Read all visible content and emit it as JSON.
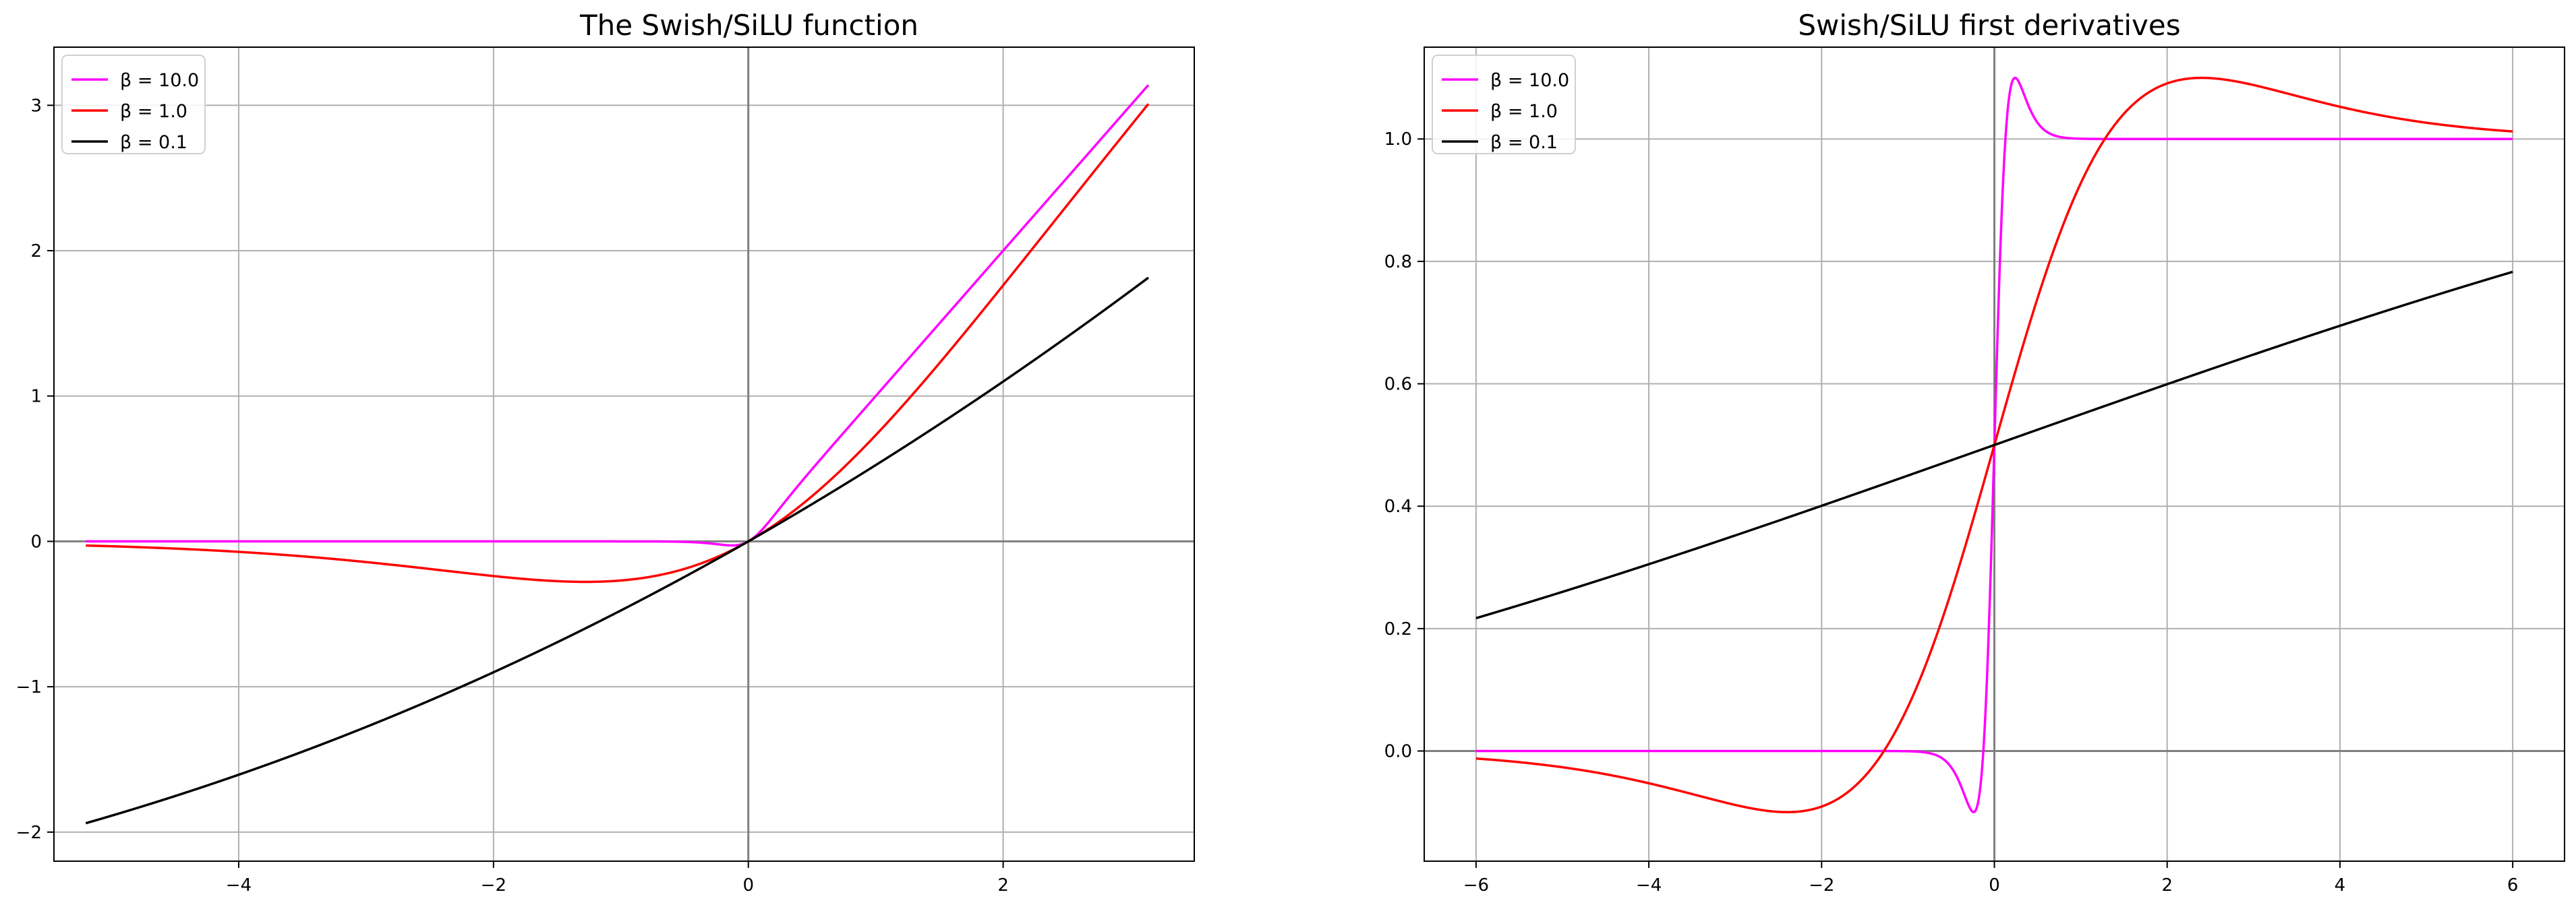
{
  "chart_data": [
    {
      "type": "line",
      "title": "The Swish/SiLU function",
      "xlim": [
        -5.45,
        3.5
      ],
      "ylim": [
        -2.2,
        3.4
      ],
      "xticks": [
        -4,
        -2,
        0,
        2
      ],
      "yticks": [
        -2,
        -1,
        0,
        1,
        2,
        3
      ],
      "xtick_labels": [
        "−4",
        "−2",
        "0",
        "2"
      ],
      "ytick_labels": [
        "−2",
        "−1",
        "0",
        "1",
        "2",
        "3"
      ],
      "grid": true,
      "legend": "top-left",
      "x_range": [
        -5.2,
        3.14
      ],
      "series": [
        {
          "name": "β = 10.0",
          "beta": 10.0,
          "color": "#ff00ff",
          "x": [
            -5.2,
            -4,
            -3,
            -2,
            -1,
            -0.5,
            -0.2,
            0,
            0.2,
            0.5,
            1,
            2,
            3.14
          ],
          "y": [
            0.0,
            0.0,
            0.0,
            0.0,
            -0.0,
            -0.003,
            -0.024,
            0.0,
            0.176,
            0.497,
            1.0,
            2.0,
            3.14
          ]
        },
        {
          "name": "β = 1.0",
          "beta": 1.0,
          "color": "#ff0000",
          "x": [
            -5.2,
            -4,
            -3,
            -2,
            -1.28,
            -1,
            -0.5,
            0,
            0.5,
            1,
            2,
            3.14
          ],
          "y": [
            -0.029,
            -0.072,
            -0.142,
            -0.238,
            -0.278,
            -0.269,
            -0.189,
            0.0,
            0.311,
            0.731,
            1.762,
            3.007
          ]
        },
        {
          "name": "β = 0.1",
          "beta": 0.1,
          "color": "#000000",
          "x": [
            -5.2,
            -4,
            -3,
            -2,
            -1,
            0,
            1,
            2,
            3.14
          ],
          "y": [
            -1.947,
            -1.604,
            -1.245,
            -0.9,
            -0.475,
            0.0,
            0.525,
            1.1,
            1.818
          ]
        }
      ]
    },
    {
      "type": "line",
      "title": "Swish/SiLU first derivatives",
      "xlim": [
        -6.6,
        6.6
      ],
      "ylim": [
        -0.18,
        1.15
      ],
      "xticks": [
        -6,
        -4,
        -2,
        0,
        2,
        4,
        6
      ],
      "yticks": [
        0.0,
        0.2,
        0.4,
        0.6,
        0.8,
        1.0
      ],
      "xtick_labels": [
        "−6",
        "−4",
        "−2",
        "0",
        "2",
        "4",
        "6"
      ],
      "ytick_labels": [
        "0.0",
        "0.2",
        "0.4",
        "0.6",
        "0.8",
        "1.0"
      ],
      "grid": true,
      "legend": "top-left",
      "x_range": [
        -6,
        6
      ],
      "series": [
        {
          "name": "β = 10.0",
          "beta": 10.0,
          "color": "#ff00ff",
          "x": [
            -6,
            -1,
            -0.5,
            -0.24,
            -0.1,
            0,
            0.1,
            0.24,
            0.5,
            1,
            6
          ],
          "y": [
            0.0,
            -0.0004,
            -0.027,
            -0.1,
            0.1,
            0.5,
            0.9,
            1.1,
            1.027,
            1.0004,
            1.0
          ]
        },
        {
          "name": "β = 1.0",
          "beta": 1.0,
          "color": "#ff0000",
          "x": [
            -6,
            -4,
            -2.4,
            -1,
            0,
            1,
            2.4,
            4,
            6
          ],
          "y": [
            -0.012,
            -0.053,
            -0.1,
            0.072,
            0.5,
            0.928,
            1.1,
            1.053,
            1.012
          ]
        },
        {
          "name": "β = 0.1",
          "beta": 0.1,
          "color": "#000000",
          "x": [
            -6,
            -4,
            -2,
            0,
            2,
            4,
            6
          ],
          "y": [
            0.216,
            0.304,
            0.401,
            0.5,
            0.599,
            0.696,
            0.784
          ]
        }
      ]
    }
  ]
}
